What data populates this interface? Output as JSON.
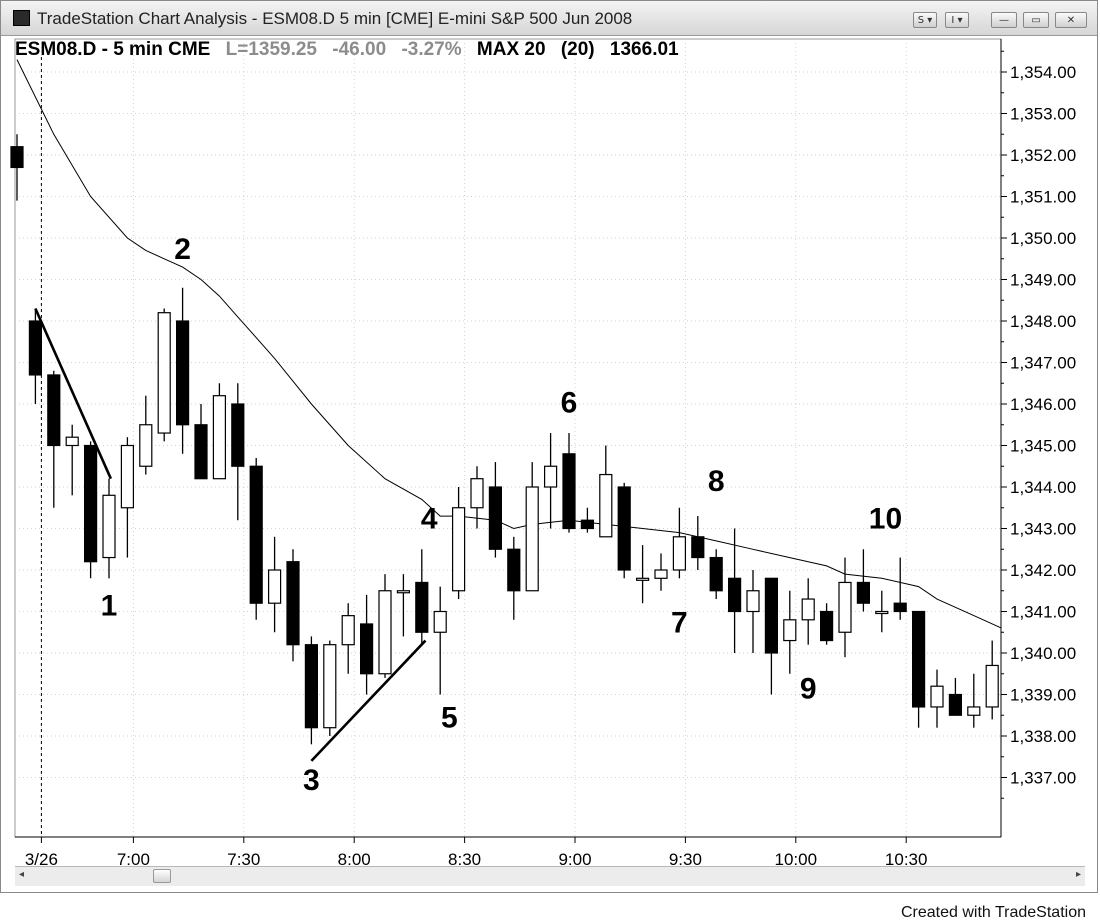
{
  "window": {
    "title": "TradeStation Chart Analysis - ESM08.D 5 min [CME] E-mini S&P 500 Jun 2008",
    "buttons": {
      "s_menu": "S ▾",
      "i_menu": "I ▾",
      "minimize": "—",
      "restore": "▭",
      "close": "✕"
    }
  },
  "legend": {
    "symbol": "ESM08.D - 5 min CME",
    "last": "L=1359.25",
    "change": "-46.00",
    "change_pct": "-3.27%",
    "indicator": "MAX 20",
    "indicator_len": "(20)",
    "indicator_value": "1366.01"
  },
  "footer": {
    "credit": "Created with TradeStation"
  },
  "colors": {
    "background": "#ffffff",
    "bar_fill_down": "#000000",
    "bar_fill_up": "#ffffff",
    "axis": "#000000",
    "grid": "#c8c8c8",
    "legend_grey": "#8c8c8c"
  },
  "chart_data": {
    "type": "candlestick",
    "ylim": [
      1336.2,
      1354.6
    ],
    "ytick_values": [
      1337,
      1338,
      1339,
      1340,
      1341,
      1342,
      1343,
      1344,
      1345,
      1346,
      1347,
      1348,
      1349,
      1350,
      1351,
      1352,
      1353,
      1354
    ],
    "ytick_labels": [
      "1,337.00",
      "1,338.00",
      "1,339.00",
      "1,340.00",
      "1,341.00",
      "1,342.00",
      "1,343.00",
      "1,344.00",
      "1,345.00",
      "1,346.00",
      "1,347.00",
      "1,348.00",
      "1,349.00",
      "1,350.00",
      "1,351.00",
      "1,352.00",
      "1,353.00",
      "1,354.00"
    ],
    "xticks": [
      {
        "index": 1,
        "label": "3/26"
      },
      {
        "index": 6,
        "label": "7:00"
      },
      {
        "index": 12,
        "label": "7:30"
      },
      {
        "index": 18,
        "label": "8:00"
      },
      {
        "index": 24,
        "label": "8:30"
      },
      {
        "index": 30,
        "label": "9:00"
      },
      {
        "index": 36,
        "label": "9:30"
      },
      {
        "index": 42,
        "label": "10:00"
      },
      {
        "index": 48,
        "label": "10:30"
      }
    ],
    "session_break_index": 1,
    "bars": [
      {
        "o": 1352.2,
        "h": 1352.5,
        "l": 1350.9,
        "c": 1351.7
      },
      {
        "o": 1348.0,
        "h": 1348.3,
        "l": 1346.0,
        "c": 1346.7
      },
      {
        "o": 1346.7,
        "h": 1346.8,
        "l": 1343.5,
        "c": 1345.0
      },
      {
        "o": 1345.0,
        "h": 1345.5,
        "l": 1343.8,
        "c": 1345.2
      },
      {
        "o": 1345.0,
        "h": 1345.1,
        "l": 1341.8,
        "c": 1342.2
      },
      {
        "o": 1342.3,
        "h": 1344.2,
        "l": 1341.8,
        "c": 1343.8
      },
      {
        "o": 1343.5,
        "h": 1345.2,
        "l": 1342.3,
        "c": 1345.0
      },
      {
        "o": 1344.5,
        "h": 1346.2,
        "l": 1344.3,
        "c": 1345.5
      },
      {
        "o": 1345.3,
        "h": 1348.3,
        "l": 1345.1,
        "c": 1348.2
      },
      {
        "o": 1348.0,
        "h": 1348.8,
        "l": 1344.8,
        "c": 1345.5
      },
      {
        "o": 1345.5,
        "h": 1346.0,
        "l": 1344.2,
        "c": 1344.2
      },
      {
        "o": 1344.2,
        "h": 1346.5,
        "l": 1344.2,
        "c": 1346.2
      },
      {
        "o": 1346.0,
        "h": 1346.5,
        "l": 1343.2,
        "c": 1344.5
      },
      {
        "o": 1344.5,
        "h": 1344.7,
        "l": 1340.8,
        "c": 1341.2
      },
      {
        "o": 1341.2,
        "h": 1342.8,
        "l": 1340.5,
        "c": 1342.0
      },
      {
        "o": 1342.2,
        "h": 1342.5,
        "l": 1339.8,
        "c": 1340.2
      },
      {
        "o": 1340.2,
        "h": 1340.4,
        "l": 1337.8,
        "c": 1338.2
      },
      {
        "o": 1338.2,
        "h": 1340.3,
        "l": 1338.0,
        "c": 1340.2
      },
      {
        "o": 1340.2,
        "h": 1341.2,
        "l": 1339.5,
        "c": 1340.9
      },
      {
        "o": 1340.7,
        "h": 1341.4,
        "l": 1339.0,
        "c": 1339.5
      },
      {
        "o": 1339.5,
        "h": 1341.9,
        "l": 1339.4,
        "c": 1341.5
      },
      {
        "o": 1341.5,
        "h": 1341.9,
        "l": 1340.4,
        "c": 1341.5
      },
      {
        "o": 1341.7,
        "h": 1342.5,
        "l": 1340.2,
        "c": 1340.5
      },
      {
        "o": 1340.5,
        "h": 1341.6,
        "l": 1339.0,
        "c": 1341.0
      },
      {
        "o": 1341.5,
        "h": 1344.0,
        "l": 1341.3,
        "c": 1343.5
      },
      {
        "o": 1343.5,
        "h": 1344.5,
        "l": 1343.0,
        "c": 1344.2
      },
      {
        "o": 1344.0,
        "h": 1344.6,
        "l": 1342.3,
        "c": 1342.5
      },
      {
        "o": 1342.5,
        "h": 1342.8,
        "l": 1340.8,
        "c": 1341.5
      },
      {
        "o": 1341.5,
        "h": 1344.6,
        "l": 1341.5,
        "c": 1344.0
      },
      {
        "o": 1344.0,
        "h": 1345.3,
        "l": 1343.0,
        "c": 1344.5
      },
      {
        "o": 1344.8,
        "h": 1345.3,
        "l": 1342.9,
        "c": 1343.0
      },
      {
        "o": 1343.2,
        "h": 1343.5,
        "l": 1342.9,
        "c": 1343.0
      },
      {
        "o": 1342.8,
        "h": 1345.0,
        "l": 1342.8,
        "c": 1344.3
      },
      {
        "o": 1344.0,
        "h": 1344.1,
        "l": 1341.8,
        "c": 1342.0
      },
      {
        "o": 1341.8,
        "h": 1342.6,
        "l": 1341.2,
        "c": 1341.8
      },
      {
        "o": 1341.8,
        "h": 1342.4,
        "l": 1341.5,
        "c": 1342.0
      },
      {
        "o": 1342.0,
        "h": 1343.5,
        "l": 1341.8,
        "c": 1342.8
      },
      {
        "o": 1342.8,
        "h": 1343.3,
        "l": 1342.0,
        "c": 1342.3
      },
      {
        "o": 1342.3,
        "h": 1342.5,
        "l": 1341.3,
        "c": 1341.5
      },
      {
        "o": 1341.8,
        "h": 1343.0,
        "l": 1340.0,
        "c": 1341.0
      },
      {
        "o": 1341.0,
        "h": 1342.0,
        "l": 1340.0,
        "c": 1341.5
      },
      {
        "o": 1341.8,
        "h": 1341.8,
        "l": 1339.0,
        "c": 1340.0
      },
      {
        "o": 1340.3,
        "h": 1341.5,
        "l": 1339.5,
        "c": 1340.8
      },
      {
        "o": 1340.8,
        "h": 1341.8,
        "l": 1340.2,
        "c": 1341.3
      },
      {
        "o": 1341.0,
        "h": 1341.2,
        "l": 1340.2,
        "c": 1340.3
      },
      {
        "o": 1340.5,
        "h": 1342.3,
        "l": 1339.9,
        "c": 1341.7
      },
      {
        "o": 1341.7,
        "h": 1342.5,
        "l": 1341.0,
        "c": 1341.2
      },
      {
        "o": 1341.0,
        "h": 1341.5,
        "l": 1340.5,
        "c": 1341.0
      },
      {
        "o": 1341.2,
        "h": 1342.3,
        "l": 1340.8,
        "c": 1341.0
      },
      {
        "o": 1341.0,
        "h": 1341.0,
        "l": 1338.2,
        "c": 1338.7
      },
      {
        "o": 1338.7,
        "h": 1339.6,
        "l": 1338.2,
        "c": 1339.2
      },
      {
        "o": 1339.0,
        "h": 1339.4,
        "l": 1338.5,
        "c": 1338.5
      },
      {
        "o": 1338.5,
        "h": 1339.5,
        "l": 1338.2,
        "c": 1338.7
      },
      {
        "o": 1338.7,
        "h": 1340.3,
        "l": 1338.4,
        "c": 1339.7
      }
    ],
    "ma_line": [
      {
        "x": 0,
        "y": 1354.3
      },
      {
        "x": 2,
        "y": 1352.5
      },
      {
        "x": 4,
        "y": 1351.0
      },
      {
        "x": 6,
        "y": 1350.0
      },
      {
        "x": 7,
        "y": 1349.7
      },
      {
        "x": 8,
        "y": 1349.5
      },
      {
        "x": 9,
        "y": 1349.3
      },
      {
        "x": 10,
        "y": 1349.0
      },
      {
        "x": 11,
        "y": 1348.6
      },
      {
        "x": 12,
        "y": 1348.1
      },
      {
        "x": 14,
        "y": 1347.1
      },
      {
        "x": 16,
        "y": 1346.0
      },
      {
        "x": 18,
        "y": 1345.0
      },
      {
        "x": 20,
        "y": 1344.2
      },
      {
        "x": 22,
        "y": 1343.7
      },
      {
        "x": 23,
        "y": 1343.3
      },
      {
        "x": 24,
        "y": 1343.3
      },
      {
        "x": 26,
        "y": 1343.2
      },
      {
        "x": 27,
        "y": 1343.0
      },
      {
        "x": 28,
        "y": 1343.1
      },
      {
        "x": 30,
        "y": 1343.2
      },
      {
        "x": 32,
        "y": 1343.1
      },
      {
        "x": 34,
        "y": 1343.0
      },
      {
        "x": 36,
        "y": 1342.9
      },
      {
        "x": 38,
        "y": 1342.7
      },
      {
        "x": 40,
        "y": 1342.5
      },
      {
        "x": 42,
        "y": 1342.3
      },
      {
        "x": 44,
        "y": 1342.1
      },
      {
        "x": 45,
        "y": 1341.9
      },
      {
        "x": 47,
        "y": 1341.8
      },
      {
        "x": 49,
        "y": 1341.6
      },
      {
        "x": 50,
        "y": 1341.3
      },
      {
        "x": 52,
        "y": 1340.9
      },
      {
        "x": 53.5,
        "y": 1340.6
      }
    ],
    "trendlines": [
      {
        "x1": 1,
        "y1": 1348.3,
        "x2": 5.1,
        "y2": 1344.2
      },
      {
        "x1": 16,
        "y1": 1337.4,
        "x2": 22.2,
        "y2": 1340.3
      }
    ],
    "annotations": [
      {
        "text": "1",
        "x": 5,
        "y": 1340.9
      },
      {
        "text": "2",
        "x": 9,
        "y": 1349.5
      },
      {
        "text": "3",
        "x": 16,
        "y": 1336.7
      },
      {
        "text": "4",
        "x": 22.4,
        "y": 1343.0
      },
      {
        "text": "5",
        "x": 23.5,
        "y": 1338.2
      },
      {
        "text": "6",
        "x": 30,
        "y": 1345.8
      },
      {
        "text": "7",
        "x": 36,
        "y": 1340.5
      },
      {
        "text": "8",
        "x": 38,
        "y": 1343.9
      },
      {
        "text": "9",
        "x": 43,
        "y": 1338.9
      },
      {
        "text": "10",
        "x": 47.2,
        "y": 1343.0
      }
    ]
  }
}
